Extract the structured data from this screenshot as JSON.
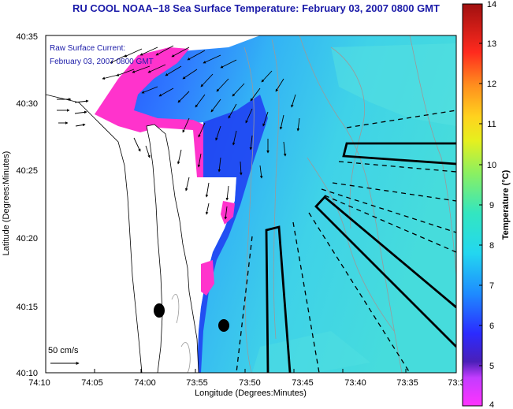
{
  "title": "RU COOL  NOAA−18  Sea Surface Temperature:  February 03, 2007 0800 GMT",
  "legend": {
    "line1": "Raw Surface Current:",
    "line2": "February 03, 2007 0800 GMT",
    "scale_label": "50 cm/s"
  },
  "axes": {
    "xlabel": "Longitude (Degrees:Minutes)",
    "ylabel": "Latitude (Degrees:Minutes)",
    "x_ticks": [
      "74:10",
      "74:05",
      "74:00",
      "73:55",
      "73:50",
      "73:45",
      "73:40",
      "73:35",
      "73:3"
    ],
    "y_ticks": [
      "40:35",
      "40:30",
      "40:25",
      "40:20",
      "40:15",
      "40:10"
    ]
  },
  "colorbar": {
    "label": "Temperature (°C)",
    "ticks": [
      "14",
      "13",
      "12",
      "11",
      "10",
      "9",
      "8",
      "7",
      "6",
      "5",
      "4"
    ],
    "range": [
      4,
      14
    ]
  },
  "colors": {
    "title": "#1a1aa8",
    "land": "#ffffff",
    "cold_edge": "#ff33cc",
    "sst_mid": "#2a6bff",
    "sst_warm": "#3fd6e6"
  }
}
